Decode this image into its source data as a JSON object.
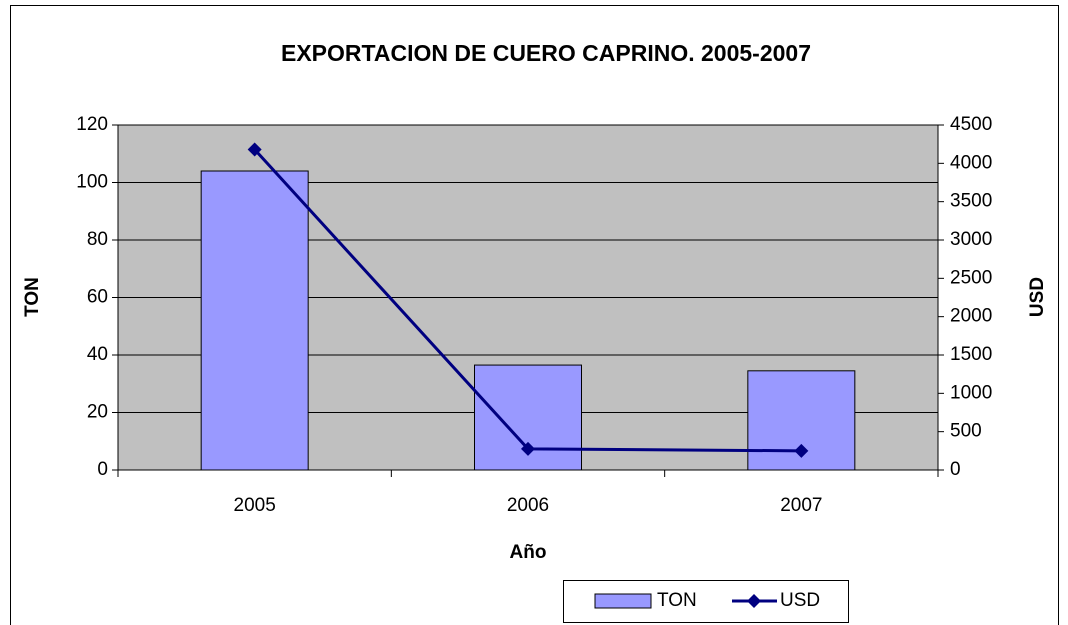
{
  "chart_data": {
    "type": "bar",
    "title": "EXPORTACION DE CUERO CAPRINO. 2005-2007",
    "x_label": "Año",
    "y_label": "TON",
    "y2_label": "USD",
    "categories": [
      "2005",
      "2006",
      "2007"
    ],
    "series": [
      {
        "name": "TON",
        "color": "#9999ff",
        "values": [
          104,
          36.5,
          34.5
        ]
      },
      {
        "name": "USD",
        "color": "#000080",
        "type": "line",
        "axis": "y2",
        "values": [
          4180,
          275,
          250
        ]
      }
    ],
    "ylim": [
      0,
      120
    ],
    "yticks": [
      0,
      20,
      40,
      60,
      80,
      100,
      120
    ],
    "y2lim": [
      0,
      4500
    ],
    "y2ticks": [
      0,
      500,
      1000,
      1500,
      2000,
      2500,
      3000,
      3500,
      4000,
      4500
    ],
    "grid": true,
    "legend": "bottom"
  }
}
